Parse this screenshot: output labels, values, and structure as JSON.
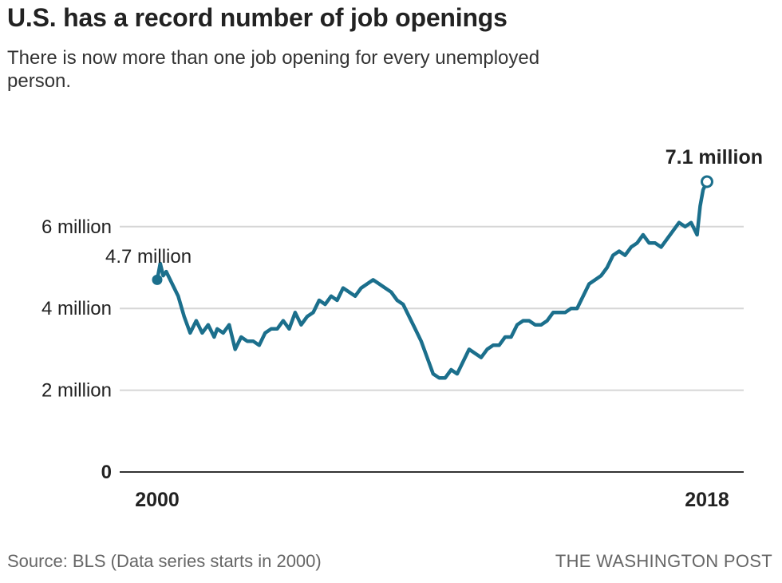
{
  "title": "U.S. has a record number of job openings",
  "subtitle": "There is now more than one job opening for every unemployed person.",
  "source": "Source: BLS (Data series starts in 2000)",
  "credit": "THE WASHINGTON POST",
  "colors": {
    "line": "#1b6f8c",
    "grid": "#d6d6d6",
    "text": "#222222"
  },
  "chart_data": {
    "type": "line",
    "title": "U.S. has a record number of job openings",
    "subtitle": "There is now more than one job opening for every unemployed person.",
    "xlabel": "",
    "ylabel": "",
    "xlim": [
      2000,
      2018.33
    ],
    "ylim": [
      0,
      7.5
    ],
    "grid": true,
    "y_ticks": [
      {
        "value": 0,
        "label": "0",
        "bold": true
      },
      {
        "value": 2,
        "label": "2 million"
      },
      {
        "value": 4,
        "label": "4 million"
      },
      {
        "value": 6,
        "label": "6 million"
      }
    ],
    "x_ticks": [
      {
        "value": 2000,
        "label": "2000"
      },
      {
        "value": 2018.33,
        "label": "2018"
      }
    ],
    "annotations": [
      {
        "x": 2000,
        "y": 4.7,
        "label": "4.7 million",
        "marker": "filled"
      },
      {
        "x": 2018.33,
        "y": 7.1,
        "label": "7.1 million",
        "marker": "open"
      }
    ],
    "series": [
      {
        "values_in_millions": true,
        "x": [
          2000.0,
          2000.1,
          2000.2,
          2000.3,
          2000.5,
          2000.7,
          2000.9,
          2001.1,
          2001.3,
          2001.5,
          2001.7,
          2001.9,
          2002.0,
          2002.2,
          2002.4,
          2002.6,
          2002.8,
          2003.0,
          2003.2,
          2003.4,
          2003.6,
          2003.8,
          2004.0,
          2004.2,
          2004.4,
          2004.6,
          2004.8,
          2005.0,
          2005.2,
          2005.4,
          2005.6,
          2005.8,
          2006.0,
          2006.2,
          2006.4,
          2006.6,
          2006.8,
          2007.0,
          2007.2,
          2007.4,
          2007.6,
          2007.8,
          2008.0,
          2008.2,
          2008.4,
          2008.6,
          2008.8,
          2009.0,
          2009.2,
          2009.4,
          2009.6,
          2009.8,
          2010.0,
          2010.2,
          2010.4,
          2010.6,
          2010.8,
          2011.0,
          2011.2,
          2011.4,
          2011.6,
          2011.8,
          2012.0,
          2012.2,
          2012.4,
          2012.6,
          2012.8,
          2013.0,
          2013.2,
          2013.4,
          2013.6,
          2013.8,
          2014.0,
          2014.2,
          2014.4,
          2014.6,
          2014.8,
          2015.0,
          2015.2,
          2015.4,
          2015.6,
          2015.8,
          2016.0,
          2016.2,
          2016.4,
          2016.6,
          2016.8,
          2017.0,
          2017.2,
          2017.4,
          2017.6,
          2017.8,
          2018.0,
          2018.1,
          2018.2,
          2018.33
        ],
        "values": [
          4.7,
          5.1,
          4.8,
          4.9,
          4.6,
          4.3,
          3.8,
          3.4,
          3.7,
          3.4,
          3.6,
          3.3,
          3.5,
          3.4,
          3.6,
          3.0,
          3.3,
          3.2,
          3.2,
          3.1,
          3.4,
          3.5,
          3.5,
          3.7,
          3.5,
          3.9,
          3.6,
          3.8,
          3.9,
          4.2,
          4.1,
          4.3,
          4.2,
          4.5,
          4.4,
          4.3,
          4.5,
          4.6,
          4.7,
          4.6,
          4.5,
          4.4,
          4.2,
          4.1,
          3.8,
          3.5,
          3.2,
          2.8,
          2.4,
          2.3,
          2.3,
          2.5,
          2.4,
          2.7,
          3.0,
          2.9,
          2.8,
          3.0,
          3.1,
          3.1,
          3.3,
          3.3,
          3.6,
          3.7,
          3.7,
          3.6,
          3.6,
          3.7,
          3.9,
          3.9,
          3.9,
          4.0,
          4.0,
          4.3,
          4.6,
          4.7,
          4.8,
          5.0,
          5.3,
          5.4,
          5.3,
          5.5,
          5.6,
          5.8,
          5.6,
          5.6,
          5.5,
          5.7,
          5.9,
          6.1,
          6.0,
          6.1,
          5.8,
          6.5,
          6.9,
          7.1
        ]
      }
    ]
  }
}
